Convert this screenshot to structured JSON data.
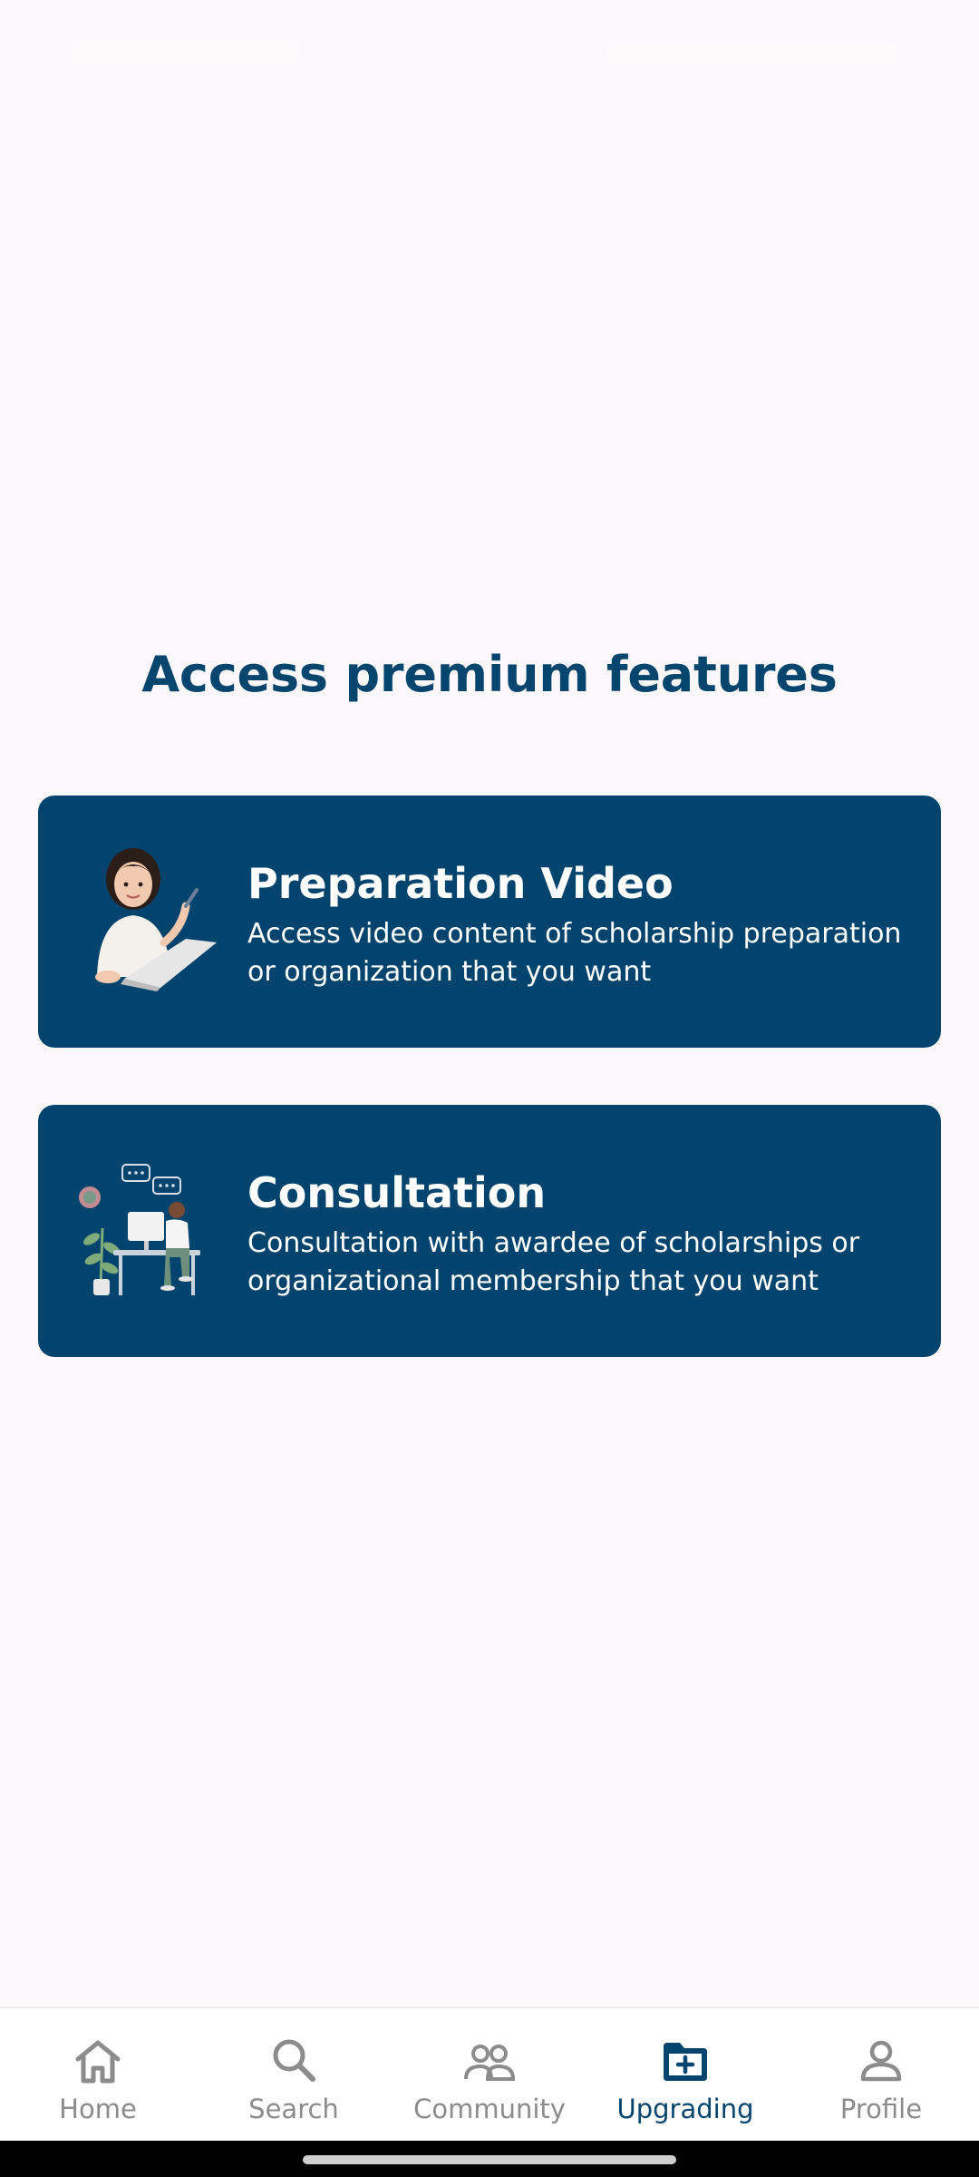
{
  "page": {
    "title": "Access premium features"
  },
  "features": [
    {
      "title": "Preparation Video",
      "description": "Access video content of scholarship preparation or organization that you want",
      "illustration": "woman-laptop-illustration"
    },
    {
      "title": "Consultation",
      "description": "Consultation with awardee of scholarships or organizational membership that you want",
      "illustration": "person-desk-consultation-illustration"
    }
  ],
  "nav": {
    "items": [
      {
        "label": "Home",
        "icon": "home-icon",
        "active": false
      },
      {
        "label": "Search",
        "icon": "search-icon",
        "active": false
      },
      {
        "label": "Community",
        "icon": "community-icon",
        "active": false
      },
      {
        "label": "Upgrading",
        "icon": "folder-plus-icon",
        "active": true
      },
      {
        "label": "Profile",
        "icon": "profile-icon",
        "active": false
      }
    ]
  },
  "colors": {
    "background": "#fdf8fb",
    "primary": "#02446d",
    "title": "#06456d",
    "nav_inactive": "#8c8c8c",
    "nav_active": "#06456d"
  }
}
